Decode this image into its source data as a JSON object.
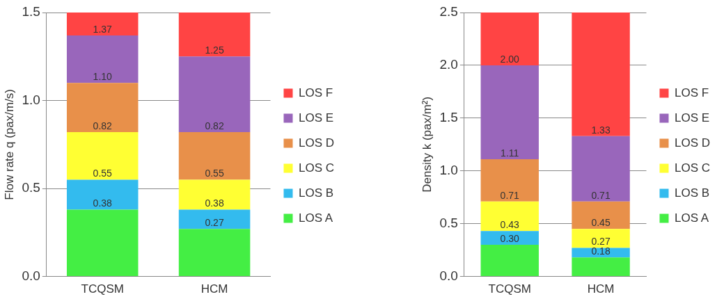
{
  "chart_data": [
    {
      "type": "bar",
      "stacked": true,
      "ylabel": "Flow rate q (pax/m/s)",
      "categories": [
        "TCQSM",
        "HCM"
      ],
      "ylim": [
        0,
        1.5
      ],
      "yticks": [
        {
          "value": 0,
          "label": "0.0"
        },
        0.5,
        {
          "value": 1,
          "label": "1.0"
        },
        1.5
      ],
      "grid": "y",
      "legend": "right",
      "series": [
        {
          "name": "LOS A",
          "color": "#44ee44",
          "values": [
            0.38,
            0.27
          ]
        },
        {
          "name": "LOS B",
          "color": "#33bbee",
          "values": [
            0.17,
            0.11
          ]
        },
        {
          "name": "LOS C",
          "color": "#ffff33",
          "values": [
            0.27,
            0.17
          ]
        },
        {
          "name": "LOS D",
          "color": "#e8904a",
          "values": [
            0.28,
            0.27
          ]
        },
        {
          "name": "LOS E",
          "color": "#9966bb",
          "values": [
            0.27,
            0.43
          ]
        },
        {
          "name": "LOS F",
          "color": "#ff4444",
          "values": [
            0.13,
            0.25
          ]
        }
      ],
      "annotations": [
        {
          "text": "0.38",
          "x": "TCQSM",
          "y": 0.38
        },
        {
          "text": "0.55",
          "x": "TCQSM",
          "y": 0.55
        },
        {
          "text": "0.82",
          "x": "TCQSM",
          "y": 0.82
        },
        {
          "text": "1.10",
          "x": "TCQSM",
          "y": 1.1
        },
        {
          "text": "1.37",
          "x": "TCQSM",
          "y": 1.37
        },
        {
          "text": "0.27",
          "x": "HCM",
          "y": 0.27
        },
        {
          "text": "0.38",
          "x": "HCM",
          "y": 0.38
        },
        {
          "text": "0.55",
          "x": "HCM",
          "y": 0.55
        },
        {
          "text": "0.82",
          "x": "HCM",
          "y": 0.82
        },
        {
          "text": "1.25",
          "x": "HCM",
          "y": 1.25
        }
      ]
    },
    {
      "type": "bar",
      "stacked": true,
      "ylabel": "Density k (pax/m²)",
      "categories": [
        "TCQSM",
        "HCM"
      ],
      "ylim": [
        0,
        2.5
      ],
      "yticks": [
        {
          "value": 0,
          "label": "0.0"
        },
        0.5,
        {
          "value": 1,
          "label": "1.0"
        },
        1.5,
        {
          "value": 2,
          "label": "2.0"
        },
        2.5
      ],
      "grid": "y",
      "legend": "right",
      "series": [
        {
          "name": "LOS A",
          "color": "#44ee44",
          "values": [
            0.3,
            0.18
          ]
        },
        {
          "name": "LOS B",
          "color": "#33bbee",
          "values": [
            0.13,
            0.09
          ]
        },
        {
          "name": "LOS C",
          "color": "#ffff33",
          "values": [
            0.28,
            0.18
          ]
        },
        {
          "name": "LOS D",
          "color": "#e8904a",
          "values": [
            0.4,
            0.26
          ]
        },
        {
          "name": "LOS E",
          "color": "#9966bb",
          "values": [
            0.89,
            0.62
          ]
        },
        {
          "name": "LOS F",
          "color": "#ff4444",
          "values": [
            0.5,
            1.17
          ]
        }
      ],
      "annotations": [
        {
          "text": "0.30",
          "x": "TCQSM",
          "y": 0.3
        },
        {
          "text": "0.43",
          "x": "TCQSM",
          "y": 0.43
        },
        {
          "text": "0.71",
          "x": "TCQSM",
          "y": 0.71
        },
        {
          "text": "1.11",
          "x": "TCQSM",
          "y": 1.11
        },
        {
          "text": "2.00",
          "x": "TCQSM",
          "y": 2.0
        },
        {
          "text": "0.18",
          "x": "HCM",
          "y": 0.18
        },
        {
          "text": "0.27",
          "x": "HCM",
          "y": 0.27
        },
        {
          "text": "0.45",
          "x": "HCM",
          "y": 0.45
        },
        {
          "text": "0.71",
          "x": "HCM",
          "y": 0.71
        },
        {
          "text": "1.33",
          "x": "HCM",
          "y": 1.33
        }
      ]
    }
  ]
}
